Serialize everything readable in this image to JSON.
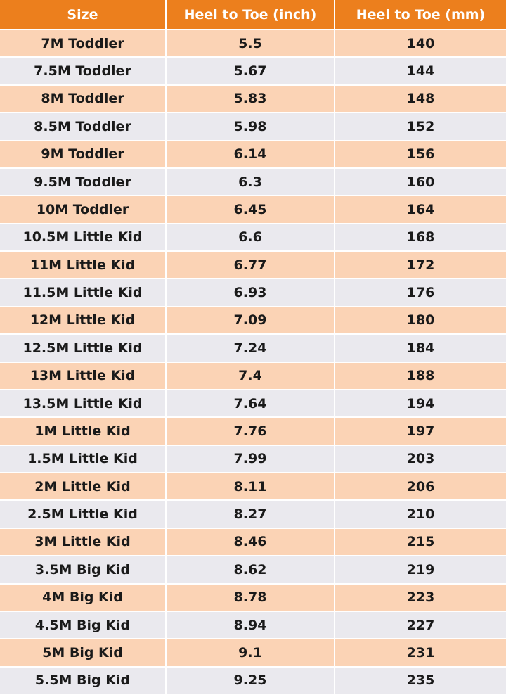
{
  "colors": {
    "header_bg": "#ec7f1d",
    "header_text": "#ffffff",
    "row_odd_bg": "#fbd3b5",
    "row_even_bg": "#eae9ee"
  },
  "table": {
    "headers": [
      "Size",
      "Heel to Toe (inch)",
      "Heel to Toe (mm)"
    ],
    "rows": [
      [
        "7M Toddler",
        "5.5",
        "140"
      ],
      [
        "7.5M Toddler",
        "5.67",
        "144"
      ],
      [
        "8M Toddler",
        "5.83",
        "148"
      ],
      [
        "8.5M Toddler",
        "5.98",
        "152"
      ],
      [
        "9M Toddler",
        "6.14",
        "156"
      ],
      [
        "9.5M Toddler",
        "6.3",
        "160"
      ],
      [
        "10M Toddler",
        "6.45",
        "164"
      ],
      [
        "10.5M Little Kid",
        "6.6",
        "168"
      ],
      [
        "11M Little Kid",
        "6.77",
        "172"
      ],
      [
        "11.5M Little Kid",
        "6.93",
        "176"
      ],
      [
        "12M Little Kid",
        "7.09",
        "180"
      ],
      [
        "12.5M Little Kid",
        "7.24",
        "184"
      ],
      [
        "13M Little Kid",
        "7.4",
        "188"
      ],
      [
        "13.5M Little Kid",
        "7.64",
        "194"
      ],
      [
        "1M Little Kid",
        "7.76",
        "197"
      ],
      [
        "1.5M Little Kid",
        "7.99",
        "203"
      ],
      [
        "2M Little Kid",
        "8.11",
        "206"
      ],
      [
        "2.5M Little Kid",
        "8.27",
        "210"
      ],
      [
        "3M Little Kid",
        "8.46",
        "215"
      ],
      [
        "3.5M Big Kid",
        "8.62",
        "219"
      ],
      [
        "4M Big Kid",
        "8.78",
        "223"
      ],
      [
        "4.5M Big Kid",
        "8.94",
        "227"
      ],
      [
        "5M Big Kid",
        "9.1",
        "231"
      ],
      [
        "5.5M Big Kid",
        "9.25",
        "235"
      ]
    ]
  }
}
